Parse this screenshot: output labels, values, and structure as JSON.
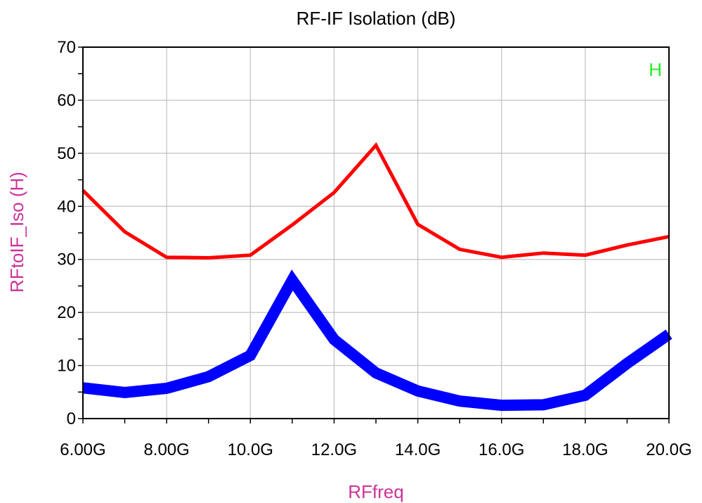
{
  "chart_data": {
    "type": "line",
    "title": "RF-IF Isolation (dB)",
    "xlabel": "RFfreq",
    "ylabel": "RFtoIF_Iso  (H)",
    "xlim": [
      6.0,
      20.0
    ],
    "ylim": [
      0,
      70
    ],
    "x_unit": "GHz",
    "x_ticks": [
      6,
      8,
      10,
      12,
      14,
      16,
      18,
      20
    ],
    "x_tick_labels": [
      "6.00G",
      "8.00G",
      "10.0G",
      "12.0G",
      "14.0G",
      "16.0G",
      "18.0G",
      "20.0G"
    ],
    "y_ticks": [
      0,
      10,
      20,
      30,
      40,
      50,
      60,
      70
    ],
    "y_tick_labels": [
      "0",
      "10",
      "20",
      "30",
      "40",
      "50",
      "60",
      "70"
    ],
    "grid": true,
    "legend_marker": "H",
    "legend_marker_color": "#22ee22",
    "series": [
      {
        "color": "#ff0000",
        "line": "thin",
        "x": [
          6,
          7,
          8,
          9,
          10,
          11,
          12,
          13,
          14,
          15,
          16,
          17,
          18,
          19,
          20
        ],
        "y": [
          43.0,
          35.2,
          30.4,
          30.3,
          30.8,
          36.5,
          42.6,
          51.5,
          36.6,
          31.9,
          30.4,
          31.2,
          30.8,
          32.7,
          34.3
        ]
      },
      {
        "color": "#0000ff",
        "line": "thick",
        "x": [
          6,
          7,
          8,
          9,
          10,
          11,
          12,
          13,
          14,
          15,
          16,
          17,
          18,
          19,
          20
        ],
        "y": [
          5.8,
          4.9,
          5.7,
          7.9,
          11.9,
          26.1,
          14.9,
          8.6,
          5.2,
          3.3,
          2.5,
          2.6,
          4.4,
          10.4,
          15.9
        ]
      }
    ]
  }
}
